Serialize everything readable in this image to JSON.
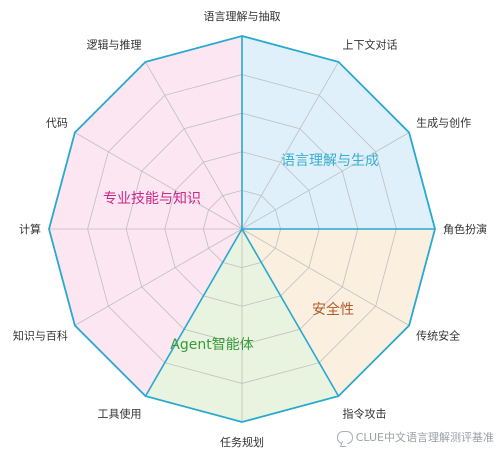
{
  "diagram": {
    "axes": [
      "语言理解与抽取",
      "上下文对话",
      "生成与创作",
      "角色扮演",
      "传统安全",
      "指令攻击",
      "任务规划",
      "工具使用",
      "知识与百科",
      "计算",
      "代码",
      "逻辑与推理"
    ],
    "categories": [
      {
        "label": "语言理解与生成",
        "axes": [
          0,
          1,
          2,
          3
        ],
        "fill": "#dff0fb",
        "text_color": "#3aaed0"
      },
      {
        "label": "安全性",
        "axes": [
          3,
          4,
          5
        ],
        "fill": "#fbf0e0",
        "text_color": "#b05a2a"
      },
      {
        "label": "Agent智能体",
        "axes": [
          5,
          6,
          7
        ],
        "fill": "#e8f3e0",
        "text_color": "#3a9a3a"
      },
      {
        "label": "专业技能与知识",
        "axes": [
          7,
          8,
          9,
          10,
          11,
          0
        ],
        "fill": "#fbe6f1",
        "text_color": "#c9288a"
      }
    ],
    "outline_color": "#28a9cf",
    "grid_color": "#bfbfbf",
    "ring_count": 4
  },
  "watermark": {
    "text": "CLUE中文语言理解测评基准",
    "icon": "chat-bubble-icon"
  }
}
